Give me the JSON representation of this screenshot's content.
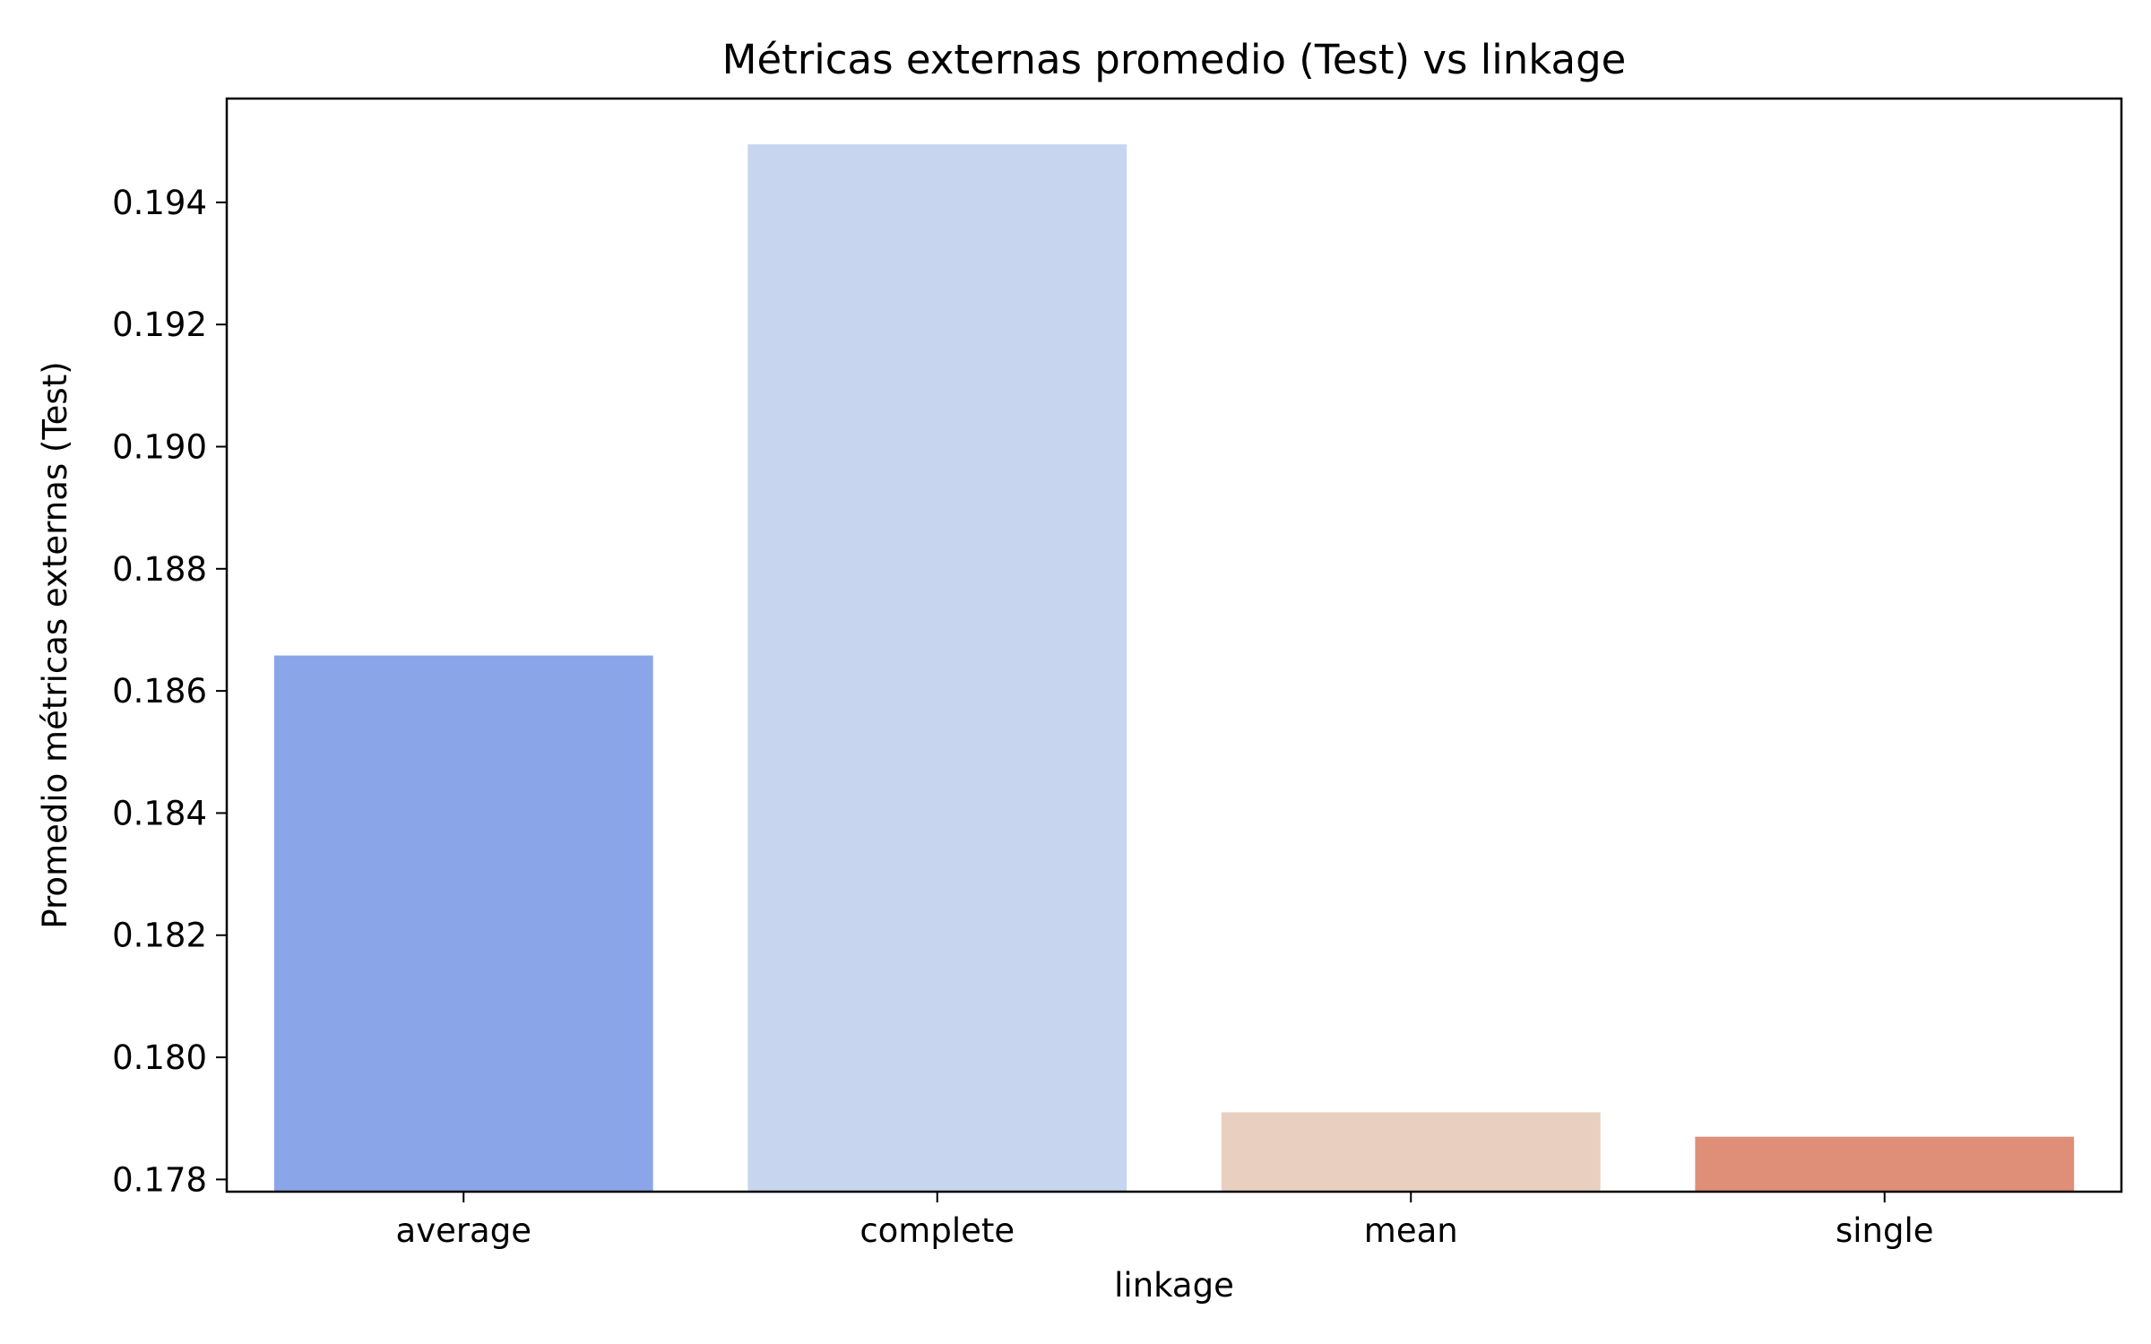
{
  "chart_data": {
    "type": "bar",
    "title": "Métricas externas promedio (Test) vs linkage",
    "xlabel": "linkage",
    "ylabel": "Promedio métricas externas (Test)",
    "categories": [
      "average",
      "complete",
      "mean",
      "single"
    ],
    "values": [
      0.18658,
      0.19495,
      0.1791,
      0.1787
    ],
    "colors": [
      "#8aa6e8",
      "#c7d5ef",
      "#e8cfbf",
      "#df8e78"
    ],
    "ylim": [
      0.1778,
      0.1957
    ],
    "yticks": [
      0.178,
      0.18,
      0.182,
      0.184,
      0.186,
      0.188,
      0.19,
      0.192,
      0.194
    ],
    "ytick_labels": [
      "0.178",
      "0.180",
      "0.182",
      "0.184",
      "0.186",
      "0.188",
      "0.190",
      "0.192",
      "0.194"
    ],
    "grid": false,
    "legend": "none"
  }
}
